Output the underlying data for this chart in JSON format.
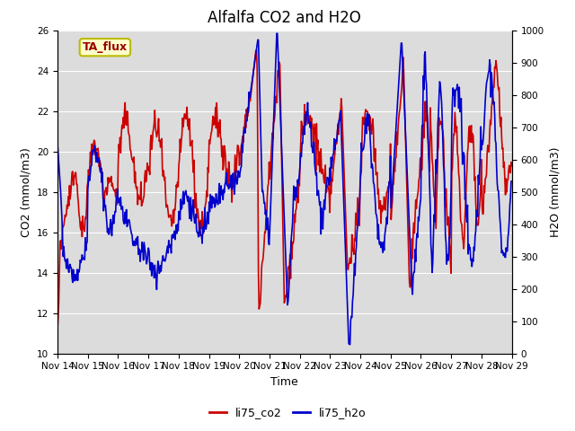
{
  "title": "Alfalfa CO2 and H2O",
  "xlabel": "Time",
  "ylabel_left": "CO2 (mmol/m3)",
  "ylabel_right": "H2O (mmol/m3)",
  "ylim_left": [
    10,
    26
  ],
  "ylim_right": [
    0,
    1000
  ],
  "yticks_left": [
    10,
    12,
    14,
    16,
    18,
    20,
    22,
    24,
    26
  ],
  "yticks_right": [
    0,
    100,
    200,
    300,
    400,
    500,
    600,
    700,
    800,
    900,
    1000
  ],
  "legend_entries": [
    "li75_co2",
    "li75_h2o"
  ],
  "color_co2": "#cc0000",
  "color_h2o": "#0000cc",
  "plot_bg": "#dcdcdc",
  "annotation_text": "TA_flux",
  "annotation_bg": "#ffffcc",
  "annotation_border": "#bbbb00",
  "annotation_text_color": "#990000",
  "xticklabels": [
    "Nov 14",
    "Nov 15",
    "Nov 16",
    "Nov 17",
    "Nov 18",
    "Nov 19",
    "Nov 20",
    "Nov 21",
    "Nov 22",
    "Nov 23",
    "Nov 24",
    "Nov 25",
    "Nov 26",
    "Nov 27",
    "Nov 28",
    "Nov 29"
  ],
  "tick_fontsize": 7.5,
  "label_fontsize": 9,
  "title_fontsize": 12,
  "legend_fontsize": 9,
  "linewidth": 1.2
}
